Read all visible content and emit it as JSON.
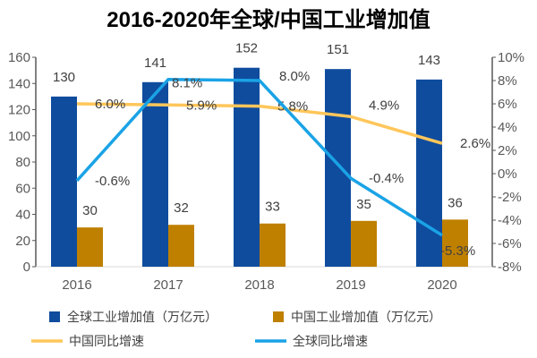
{
  "chart_data": {
    "type": "bar",
    "title": "2016-2020年全球/中国工业增加值",
    "categories": [
      "2016",
      "2017",
      "2018",
      "2019",
      "2020"
    ],
    "series": [
      {
        "name": "全球工业增加值（万亿元）",
        "kind": "bar",
        "axis": "left",
        "color": "#0F4C9E",
        "values": [
          130,
          141,
          152,
          151,
          143
        ]
      },
      {
        "name": "中国工业增加值（万亿元）",
        "kind": "bar",
        "axis": "left",
        "color": "#BF8000",
        "values": [
          30,
          32,
          33,
          35,
          36
        ]
      },
      {
        "name": "中国同比增速",
        "kind": "line",
        "axis": "right",
        "color": "#FFC65A",
        "values": [
          6.0,
          5.9,
          5.8,
          4.9,
          2.6
        ],
        "labels": [
          "6.0%",
          "5.9%",
          "5.8%",
          "4.9%",
          "2.6%"
        ]
      },
      {
        "name": "全球同比增速",
        "kind": "line",
        "axis": "right",
        "color": "#1AA3E6",
        "values": [
          -0.6,
          8.1,
          8.0,
          -0.4,
          -5.3
        ],
        "labels": [
          "-0.6%",
          "8.1%",
          "8.0%",
          "-0.4%",
          "-5.3%"
        ]
      }
    ],
    "ylim": [
      0,
      160
    ],
    "yticks": [
      "0",
      "20",
      "40",
      "60",
      "80",
      "100",
      "120",
      "140",
      "160"
    ],
    "y2lim": [
      -8,
      10
    ],
    "y2ticks": [
      "-8%",
      "-6%",
      "-4%",
      "-2%",
      "0%",
      "2%",
      "4%",
      "6%",
      "8%",
      "10%"
    ],
    "legend": "bottom",
    "grid": false
  }
}
